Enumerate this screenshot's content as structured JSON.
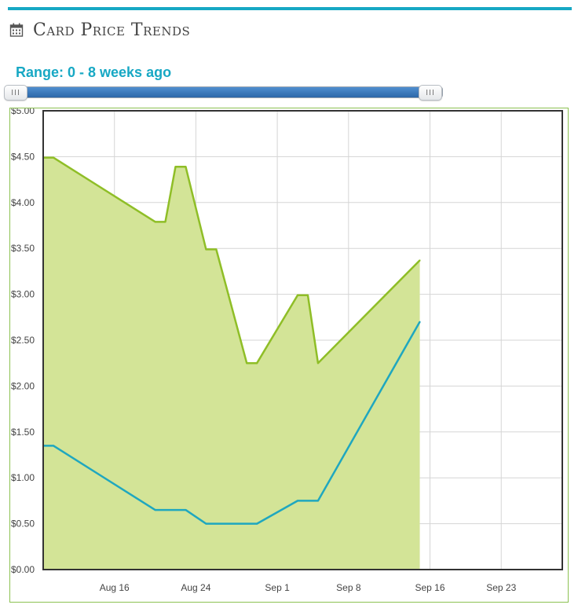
{
  "header": {
    "title": "Card Price Trends",
    "icon": "calendar-icon"
  },
  "range": {
    "label": "Range: 0 - 8 weeks ago",
    "handle_glyph": "III",
    "colors": {
      "range_fill": "#3a78c0"
    }
  },
  "colors": {
    "accent": "#17a8c4",
    "area_fill": "#d3e497",
    "series_high": "#8fbe27",
    "series_low": "#1fa7bf",
    "plot_border": "#333333",
    "grid": "#d5d5d5",
    "chart_border": "#8cc152"
  },
  "chart_data": {
    "type": "area",
    "title": "",
    "xlabel": "",
    "ylabel": "",
    "ylim": [
      0,
      5
    ],
    "yticks": [
      0,
      0.5,
      1,
      1.5,
      2,
      2.5,
      3,
      3.5,
      4,
      4.5,
      5
    ],
    "ytick_labels": [
      "$0.00",
      "$0.50",
      "$1.00",
      "$1.50",
      "$2.00",
      "$2.50",
      "$3.00",
      "$3.50",
      "$4.00",
      "$4.50",
      "$5.00"
    ],
    "xlim": [
      "2024-08-09",
      "2024-09-29"
    ],
    "xticks": [
      "2024-08-16",
      "2024-08-24",
      "2024-09-01",
      "2024-09-08",
      "2024-09-16",
      "2024-09-23"
    ],
    "xtick_labels": [
      "Aug 16",
      "Aug 24",
      "Sep 1",
      "Sep 8",
      "Sep 16",
      "Sep 23"
    ],
    "grid": true,
    "series": [
      {
        "points": [
          [
            "2024-08-09",
            4.49
          ],
          [
            "2024-08-10",
            4.49
          ],
          [
            "2024-08-20",
            3.79
          ],
          [
            "2024-08-21",
            3.79
          ],
          [
            "2024-08-22",
            4.39
          ],
          [
            "2024-08-23",
            4.39
          ],
          [
            "2024-08-25",
            3.49
          ],
          [
            "2024-08-26",
            3.49
          ],
          [
            "2024-08-29",
            2.25
          ],
          [
            "2024-08-30",
            2.25
          ],
          [
            "2024-09-03",
            2.99
          ],
          [
            "2024-09-04",
            2.99
          ],
          [
            "2024-09-05",
            2.25
          ],
          [
            "2024-09-15",
            3.37
          ]
        ]
      },
      {
        "points": [
          [
            "2024-08-09",
            1.35
          ],
          [
            "2024-08-10",
            1.35
          ],
          [
            "2024-08-20",
            0.65
          ],
          [
            "2024-08-23",
            0.65
          ],
          [
            "2024-08-25",
            0.5
          ],
          [
            "2024-08-30",
            0.5
          ],
          [
            "2024-09-03",
            0.75
          ],
          [
            "2024-09-05",
            0.75
          ],
          [
            "2024-09-15",
            2.7
          ]
        ]
      }
    ]
  }
}
